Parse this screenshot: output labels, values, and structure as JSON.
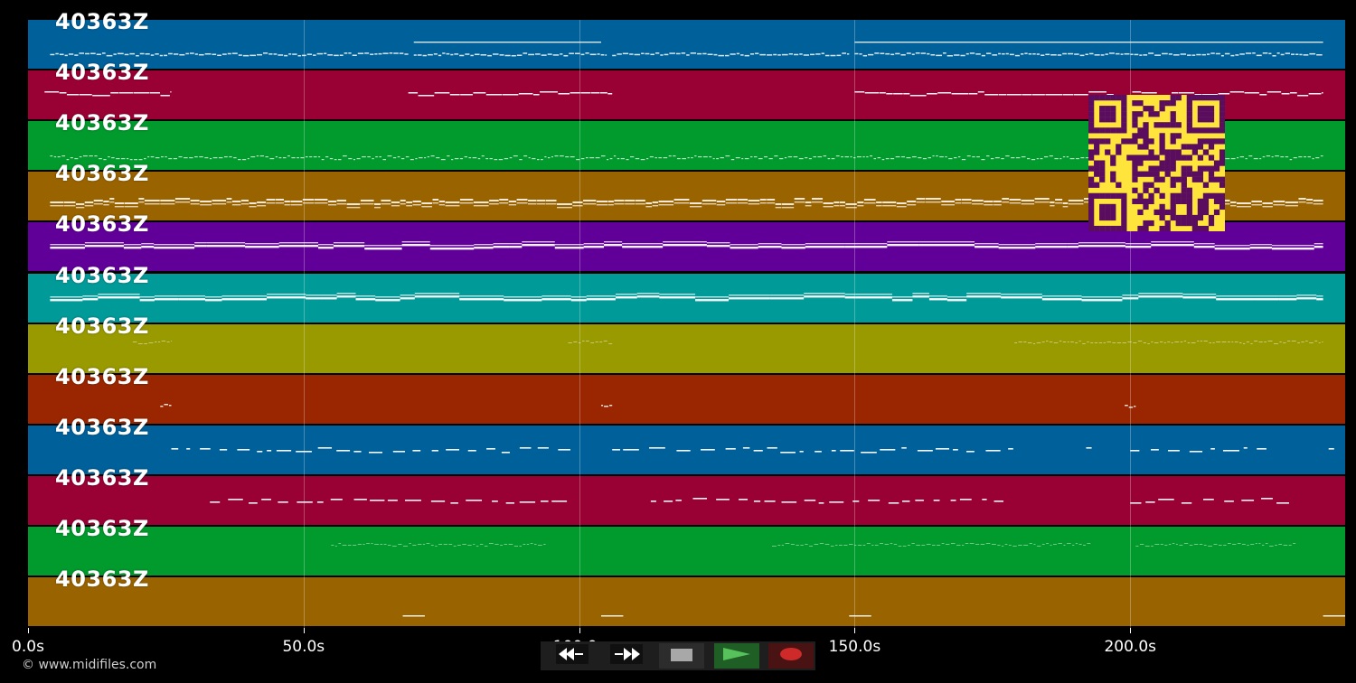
{
  "track_label": "40363Z",
  "tracks": [
    {
      "name": "40363Z",
      "color": "#00609a",
      "pattern": "dense",
      "segments": [
        [
          4,
          69
        ],
        [
          70,
          105
        ],
        [
          106,
          149
        ],
        [
          150,
          235
        ]
      ],
      "extra_lines": [
        [
          70,
          104
        ],
        [
          150,
          235
        ]
      ]
    },
    {
      "name": "40363Z",
      "color": "#990033",
      "pattern": "wave",
      "segments": [
        [
          3,
          26
        ],
        [
          69,
          106
        ],
        [
          150,
          235
        ]
      ]
    },
    {
      "name": "40363Z",
      "color": "#009a2d",
      "pattern": "dotted",
      "segments": [
        [
          4,
          235
        ]
      ]
    },
    {
      "name": "40363Z",
      "color": "#996300",
      "pattern": "double",
      "segments": [
        [
          4,
          235
        ]
      ]
    },
    {
      "name": "40363Z",
      "color": "#600099",
      "pattern": "thick",
      "segments": [
        [
          4,
          235
        ]
      ]
    },
    {
      "name": "40363Z",
      "color": "#009a99",
      "pattern": "thick",
      "segments": [
        [
          4,
          235
        ]
      ]
    },
    {
      "name": "40363Z",
      "color": "#999900",
      "pattern": "faint",
      "segments": [
        [
          19,
          26
        ],
        [
          98,
          106
        ],
        [
          179,
          235
        ]
      ]
    },
    {
      "name": "40363Z",
      "color": "#992600",
      "pattern": "tiny",
      "segments": [
        [
          24,
          26
        ],
        [
          104,
          106
        ],
        [
          199,
          201
        ]
      ]
    },
    {
      "name": "40363Z",
      "color": "#00609a",
      "pattern": "phrases",
      "segments": [
        [
          26,
          99
        ],
        [
          106,
          180
        ],
        [
          192,
          193
        ],
        [
          200,
          225
        ],
        [
          236,
          237
        ]
      ]
    },
    {
      "name": "40363Z",
      "color": "#990033",
      "pattern": "phrases",
      "segments": [
        [
          33,
          99
        ],
        [
          113,
          177
        ],
        [
          200,
          230
        ]
      ]
    },
    {
      "name": "40363Z",
      "color": "#009a2d",
      "pattern": "faint",
      "segments": [
        [
          55,
          94
        ],
        [
          135,
          193
        ],
        [
          201,
          230
        ]
      ]
    },
    {
      "name": "40363Z",
      "color": "#996300",
      "pattern": "short",
      "segments": [
        [
          68,
          72
        ],
        [
          104,
          108
        ],
        [
          149,
          153
        ],
        [
          235,
          239
        ]
      ]
    }
  ],
  "time_axis": {
    "min_s": 0,
    "max_s": 239,
    "ticks": [
      {
        "value": 0,
        "label": "0.0s"
      },
      {
        "value": 50,
        "label": "50.0s"
      },
      {
        "value": 100,
        "label": "100.0s"
      },
      {
        "value": 150,
        "label": "150.0s"
      },
      {
        "value": 200,
        "label": "200.0s"
      }
    ]
  },
  "copyright": "© www.midifiles.com",
  "transport": {
    "rewind": {
      "icon": "rewind-icon",
      "color": "#ffffff"
    },
    "forward": {
      "icon": "fast-forward-icon",
      "color": "#ffffff"
    },
    "stop": {
      "icon": "stop-icon",
      "color": "#a8a8a8"
    },
    "play": {
      "icon": "play-icon",
      "color": "#57c25c"
    },
    "record": {
      "icon": "record-icon",
      "color": "#cf2a2a"
    }
  },
  "qr_code": {
    "fg": "#5a0d5e",
    "bg": "#ffe53b"
  }
}
